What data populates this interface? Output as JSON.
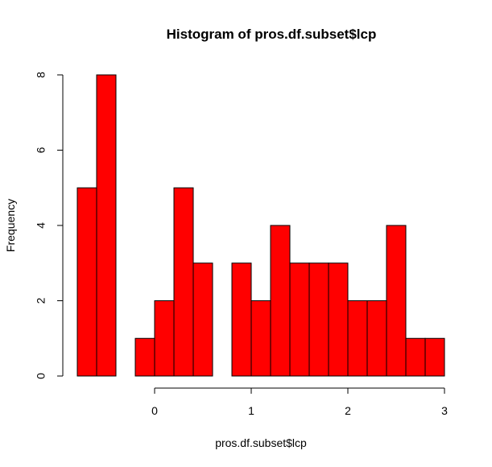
{
  "chart_data": {
    "type": "bar",
    "title": "Histogram of pros.df.subset$lcp",
    "xlabel": "pros.df.subset$lcp",
    "ylabel": "Frequency",
    "bar_color": "#ff0000",
    "bins": [
      {
        "x0": -0.8,
        "x1": -0.6,
        "count": 5
      },
      {
        "x0": -0.6,
        "x1": -0.4,
        "count": 8
      },
      {
        "x0": -0.4,
        "x1": -0.2,
        "count": 0
      },
      {
        "x0": -0.2,
        "x1": 0.0,
        "count": 1
      },
      {
        "x0": 0.0,
        "x1": 0.2,
        "count": 2
      },
      {
        "x0": 0.2,
        "x1": 0.4,
        "count": 5
      },
      {
        "x0": 0.4,
        "x1": 0.6,
        "count": 3
      },
      {
        "x0": 0.6,
        "x1": 0.8,
        "count": 0
      },
      {
        "x0": 0.8,
        "x1": 1.0,
        "count": 3
      },
      {
        "x0": 1.0,
        "x1": 1.2,
        "count": 2
      },
      {
        "x0": 1.2,
        "x1": 1.4,
        "count": 4
      },
      {
        "x0": 1.4,
        "x1": 1.6,
        "count": 3
      },
      {
        "x0": 1.6,
        "x1": 1.8,
        "count": 3
      },
      {
        "x0": 1.8,
        "x1": 2.0,
        "count": 3
      },
      {
        "x0": 2.0,
        "x1": 2.2,
        "count": 2
      },
      {
        "x0": 2.2,
        "x1": 2.4,
        "count": 2
      },
      {
        "x0": 2.4,
        "x1": 2.6,
        "count": 4
      },
      {
        "x0": 2.6,
        "x1": 2.8,
        "count": 1
      },
      {
        "x0": 2.8,
        "x1": 3.0,
        "count": 1
      }
    ],
    "x_ticks": [
      0,
      1,
      2,
      3
    ],
    "y_ticks": [
      0,
      2,
      4,
      6,
      8
    ],
    "xlim": [
      -0.8,
      3.0
    ],
    "ylim": [
      0,
      8
    ],
    "grid": false,
    "legend": "none"
  }
}
